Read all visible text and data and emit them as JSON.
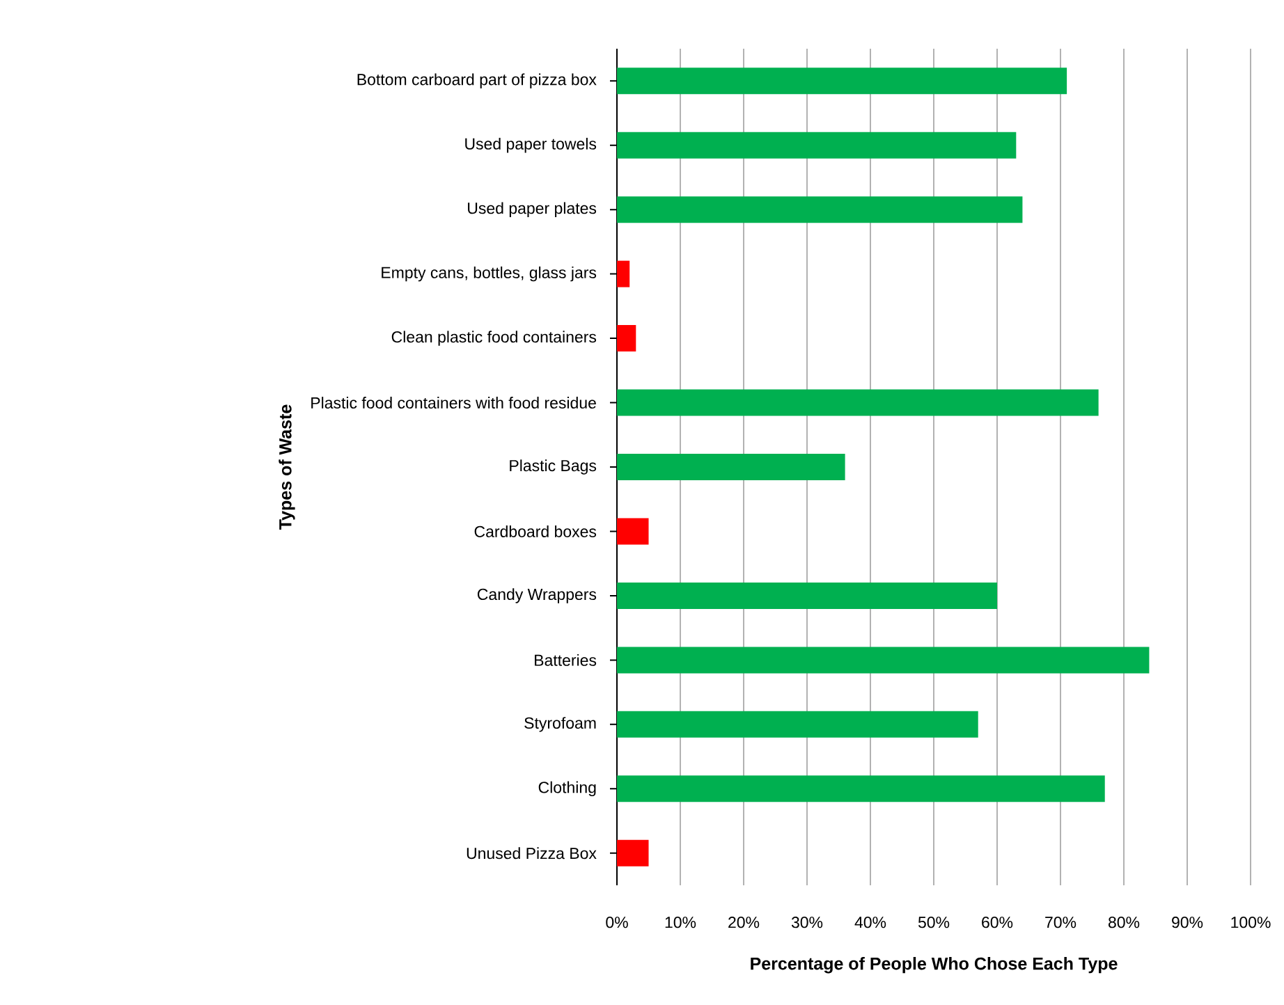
{
  "chart_data": {
    "type": "bar",
    "orientation": "horizontal",
    "ylabel": "Types of Waste",
    "xlabel": "Percentage of People Who Chose Each Type",
    "categories": [
      "Bottom carboard part of pizza box",
      "Used paper towels",
      "Used paper plates",
      "Empty cans, bottles, glass jars",
      "Clean plastic food containers",
      "Plastic food containers with food residue",
      "Plastic Bags",
      "Cardboard boxes",
      "Candy Wrappers",
      "Batteries",
      "Styrofoam",
      "Clothing",
      "Unused Pizza Box"
    ],
    "values": [
      71,
      63,
      64,
      2,
      3,
      76,
      36,
      5,
      60,
      84,
      57,
      77,
      5
    ],
    "colors": [
      "#00b050",
      "#00b050",
      "#00b050",
      "#ff0000",
      "#ff0000",
      "#00b050",
      "#00b050",
      "#ff0000",
      "#00b050",
      "#00b050",
      "#00b050",
      "#00b050",
      "#ff0000"
    ],
    "xlim": [
      0,
      100
    ],
    "xticks": [
      {
        "value": 0,
        "label": "0%"
      },
      {
        "value": 10,
        "label": "10%"
      },
      {
        "value": 20,
        "label": "20%"
      },
      {
        "value": 30,
        "label": "30%"
      },
      {
        "value": 40,
        "label": "40%"
      },
      {
        "value": 50,
        "label": "50%"
      },
      {
        "value": 60,
        "label": "60%"
      },
      {
        "value": 70,
        "label": "70%"
      },
      {
        "value": 80,
        "label": "80%"
      },
      {
        "value": 90,
        "label": "90%"
      },
      {
        "value": 100,
        "label": "100%"
      }
    ],
    "grid": "x"
  }
}
